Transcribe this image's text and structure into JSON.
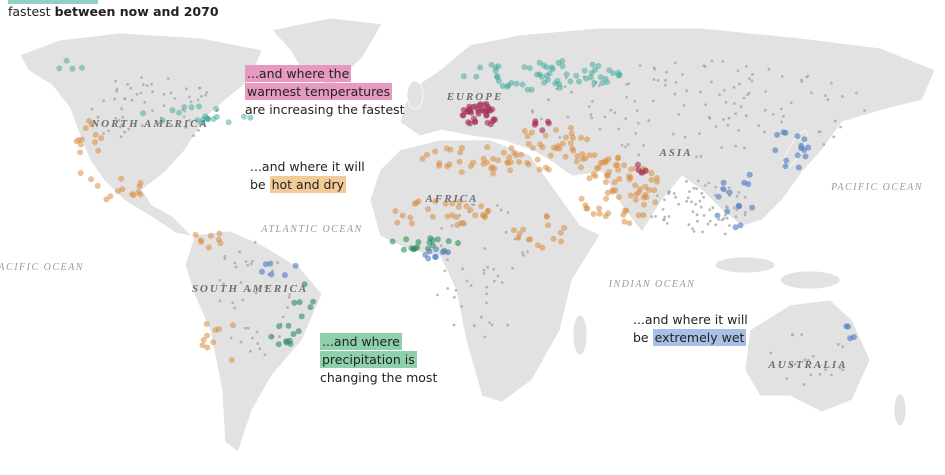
{
  "header": {
    "text": "fastest",
    "text_bold": "between now and 2070"
  },
  "labels": {
    "north_america": "NORTH AMERICA",
    "europe": "EUROPE",
    "asia": "ASIA",
    "africa": "AFRICA",
    "south_america": "SOUTH AMERICA",
    "australia": "AUSTRALIA",
    "atlantic": "ATLANTIC OCEAN",
    "pacific_west": "PACIFIC OCEAN",
    "pacific_east": "PACIFIC OCEAN",
    "indian": "INDIAN OCEAN"
  },
  "annotations": [
    {
      "color": "#e79ac0",
      "lines": [
        [
          {
            "text": "...and where the",
            "highlight": true
          }
        ],
        [
          {
            "text": "warmest temperatures",
            "highlight": true
          }
        ],
        [
          {
            "text": "are increasing the fastest",
            "highlight": false
          }
        ]
      ]
    },
    {
      "color": "#f3cb98",
      "lines": [
        [
          {
            "text": "...and where it will",
            "highlight": false
          }
        ],
        [
          {
            "text": "be ",
            "highlight": false
          },
          {
            "text": "hot and dry",
            "highlight": true
          }
        ]
      ]
    },
    {
      "color": "#8fd0ac",
      "lines": [
        [
          {
            "text": "...and where",
            "highlight": true
          }
        ],
        [
          {
            "text": "precipitation is",
            "highlight": true
          }
        ],
        [
          {
            "text": "changing the most",
            "highlight": false
          }
        ]
      ]
    },
    {
      "color": "#a9c0e6",
      "lines": [
        [
          {
            "text": "...and where it will",
            "highlight": false
          }
        ],
        [
          {
            "text": "be ",
            "highlight": false
          },
          {
            "text": "extremely wet",
            "highlight": true
          }
        ]
      ]
    }
  ]
}
